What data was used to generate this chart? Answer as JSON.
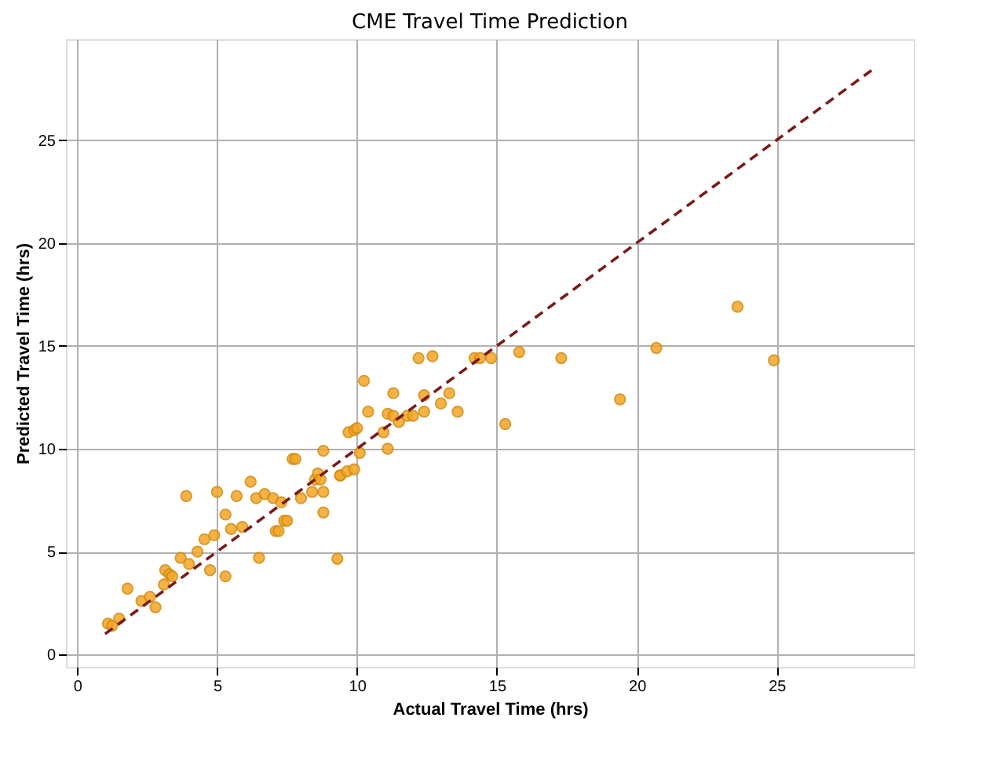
{
  "chart_data": {
    "type": "scatter",
    "title": "CME Travel Time Prediction",
    "xlabel": "Actual Travel Time (hrs)",
    "ylabel": "Predicted Travel Time (hrs)",
    "xlim": [
      -0.4,
      29.9
    ],
    "ylim": [
      -0.6,
      29.9
    ],
    "xticks": [
      0,
      5,
      10,
      15,
      20,
      25
    ],
    "yticks": [
      0,
      5,
      10,
      15,
      20,
      25
    ],
    "grid": true,
    "marker": "circle",
    "series": [
      {
        "color": "#f5a623",
        "x": [
          1.1,
          1.25,
          1.5,
          1.8,
          2.3,
          2.6,
          2.8,
          3.1,
          3.15,
          3.3,
          3.4,
          3.7,
          3.9,
          4.0,
          4.3,
          4.55,
          4.75,
          4.9,
          5.0,
          5.3,
          5.3,
          5.5,
          5.7,
          5.9,
          6.2,
          6.4,
          6.5,
          6.7,
          7.0,
          7.1,
          7.2,
          7.3,
          7.4,
          7.5,
          7.7,
          7.8,
          8.0,
          8.4,
          8.5,
          8.6,
          8.7,
          8.8,
          8.8,
          8.8,
          9.3,
          9.4,
          9.4,
          9.65,
          9.7,
          9.9,
          9.9,
          10.0,
          10.1,
          10.25,
          10.4,
          10.95,
          11.1,
          11.1,
          11.3,
          11.3,
          11.5,
          11.8,
          12.0,
          12.2,
          12.4,
          12.4,
          12.7,
          13.0,
          13.3,
          13.6,
          14.2,
          14.4,
          14.8,
          15.3,
          15.8,
          17.3,
          19.4,
          20.7,
          23.6,
          24.9
        ],
        "values": [
          1.5,
          1.4,
          1.75,
          3.2,
          2.6,
          2.8,
          2.3,
          3.4,
          4.1,
          3.9,
          3.8,
          4.7,
          7.7,
          4.4,
          5.0,
          5.6,
          4.1,
          5.8,
          7.9,
          3.8,
          6.8,
          6.1,
          7.7,
          6.2,
          8.4,
          7.6,
          4.7,
          7.8,
          7.6,
          6.0,
          6.0,
          7.4,
          6.5,
          6.5,
          9.5,
          9.5,
          7.6,
          7.9,
          8.5,
          8.8,
          8.5,
          9.9,
          7.9,
          6.9,
          4.65,
          8.7,
          8.7,
          8.9,
          10.8,
          9.0,
          10.9,
          11.0,
          9.8,
          13.3,
          11.8,
          10.8,
          10.0,
          11.7,
          11.6,
          12.7,
          11.3,
          11.6,
          11.6,
          14.4,
          12.6,
          11.8,
          14.5,
          12.2,
          12.7,
          11.8,
          14.4,
          14.4,
          14.4,
          11.2,
          14.7,
          14.4,
          12.4,
          14.9,
          16.9,
          14.3
        ]
      },
      {
        "type": "line",
        "color": "#7b1a1a",
        "line_style": "dashed",
        "marker": "none",
        "x": [
          1,
          28.5
        ],
        "values": [
          1,
          28.5
        ]
      }
    ]
  }
}
